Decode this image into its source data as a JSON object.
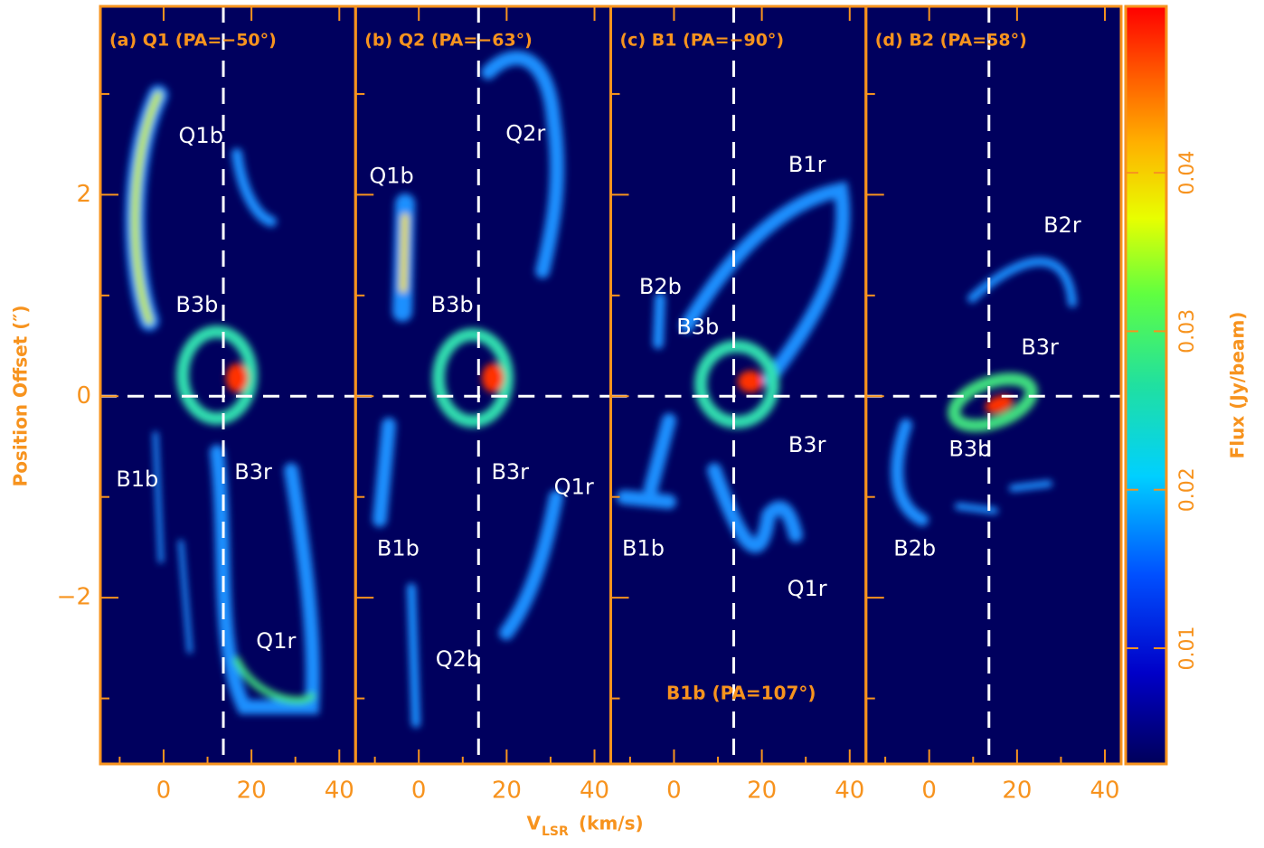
{
  "chart_data": {
    "type": "heatmap",
    "xlabel": "V",
    "xlabel_sub": "LSR",
    "xlabel_unit": "(km/s)",
    "ylabel": "Position Offset (″)",
    "colorbar_label": "Flux (Jy/beam)",
    "colormap": "rainbow",
    "xlim": [
      -14.4,
      43.7
    ],
    "xticks": [
      0,
      20,
      40
    ],
    "xticks_minor": [
      -10,
      10,
      30
    ],
    "ylim": [
      -3.65,
      3.87
    ],
    "yticks": [
      {
        "value": -2,
        "label": "−2"
      },
      0,
      2
    ],
    "yticks_minor": [
      -3,
      -1,
      1,
      3
    ],
    "clim": [
      0.0027,
      0.0505
    ],
    "cticks": [
      0.01,
      0.02,
      0.03,
      0.04
    ],
    "reference_lines": {
      "x": 13.6,
      "y": 0
    },
    "panels": [
      {
        "title": "(a) Q1 (PA=−50°)",
        "annotations": [
          {
            "text": "Q1b",
            "x": 8.5,
            "y": 2.58
          },
          {
            "text": "B3b",
            "x": 7.6,
            "y": 0.9
          },
          {
            "text": "B1b",
            "x": -6,
            "y": -0.83
          },
          {
            "text": "B3r",
            "x": 20.4,
            "y": -0.76
          },
          {
            "text": "Q1r",
            "x": 25.6,
            "y": -2.44
          }
        ]
      },
      {
        "title": "(b) Q2 (PA=−63°)",
        "annotations": [
          {
            "text": "Q2r",
            "x": 24.3,
            "y": 2.6
          },
          {
            "text": "Q1b",
            "x": -6.2,
            "y": 2.18
          },
          {
            "text": "B3b",
            "x": 7.6,
            "y": 0.9
          },
          {
            "text": "B3r",
            "x": 20.8,
            "y": -0.76
          },
          {
            "text": "Q1r",
            "x": 35.3,
            "y": -0.91
          },
          {
            "text": "B1b",
            "x": -4.7,
            "y": -1.52
          },
          {
            "text": "Q2b",
            "x": 8.9,
            "y": -2.62
          }
        ]
      },
      {
        "title": "(c) B1 (PA=−90°)",
        "annotations": [
          {
            "text": "B1r",
            "x": 30.3,
            "y": 2.29
          },
          {
            "text": "B2b",
            "x": -3.1,
            "y": 1.08
          },
          {
            "text": "B3b",
            "x": 5.4,
            "y": 0.68
          },
          {
            "text": "B3r",
            "x": 30.3,
            "y": -0.49
          },
          {
            "text": "B1b",
            "x": -7,
            "y": -1.52
          },
          {
            "text": "Q1r",
            "x": 30.3,
            "y": -1.92
          },
          {
            "text": "B1b (PA=107°)",
            "x": 15.3,
            "y": -2.96,
            "color": "#f7931e"
          }
        ]
      },
      {
        "title": "(d) B2 (PA=58°)",
        "annotations": [
          {
            "text": "B2r",
            "x": 30.3,
            "y": 1.69
          },
          {
            "text": "B3r",
            "x": 25.2,
            "y": 0.48
          },
          {
            "text": "B3b",
            "x": 9.3,
            "y": -0.53
          },
          {
            "text": "B2b",
            "x": -3.3,
            "y": -1.52
          }
        ]
      }
    ]
  }
}
